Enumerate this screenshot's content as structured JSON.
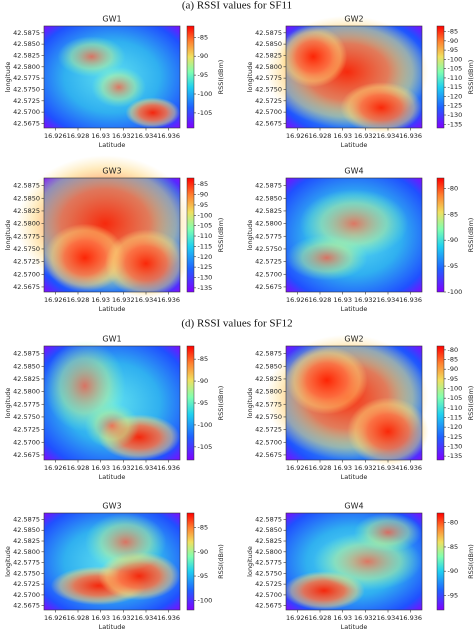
{
  "sections": [
    "(a) RSSI values for SF11",
    "(d) RSSI values for SF12"
  ],
  "chart_data": [
    {
      "type": "heatmap",
      "title": "GW1",
      "xlabel": "Latitude",
      "ylabel": "longitude",
      "xlim": [
        16.925,
        16.937
      ],
      "xticks": [
        16.926,
        16.928,
        16.93,
        16.932,
        16.934,
        16.936
      ],
      "ylim": [
        42.5665,
        42.589
      ],
      "yticks": [
        42.5675,
        {
          "value": 42.57,
          "label": "42.5700"
        },
        42.5725,
        {
          "value": 42.575,
          "label": "42.5750"
        },
        42.5775,
        {
          "value": 42.58,
          "label": "42.5800"
        },
        42.5825,
        {
          "value": 42.585,
          "label": "42.5850"
        },
        42.5875
      ],
      "colorbar": {
        "label": "RSSI(dBm)",
        "lim": [
          -109,
          -82
        ],
        "ticks": [
          -85,
          -90,
          -95,
          -100,
          -105
        ]
      }
    },
    {
      "type": "heatmap",
      "title": "GW2",
      "xlabel": "Latitude",
      "ylabel": "longitude",
      "xlim": [
        16.925,
        16.937
      ],
      "xticks": [
        16.926,
        16.928,
        16.93,
        16.932,
        16.934,
        16.936
      ],
      "ylim": [
        42.5665,
        42.589
      ],
      "yticks": [
        42.5675,
        {
          "value": 42.57,
          "label": "42.5700"
        },
        42.5725,
        {
          "value": 42.575,
          "label": "42.5750"
        },
        42.5775,
        {
          "value": 42.58,
          "label": "42.5800"
        },
        42.5825,
        {
          "value": 42.585,
          "label": "42.5850"
        },
        42.5875
      ],
      "colorbar": {
        "label": "RSSI(dBm)",
        "lim": [
          -137,
          -82
        ],
        "ticks": [
          -85,
          -90,
          -95,
          -100,
          -105,
          -110,
          -115,
          -120,
          -125,
          -130,
          -135
        ]
      }
    },
    {
      "type": "heatmap",
      "title": "GW3",
      "xlabel": "Latitude",
      "ylabel": "longitude",
      "xlim": [
        16.925,
        16.937
      ],
      "xticks": [
        16.926,
        16.928,
        16.93,
        16.932,
        16.934,
        16.936
      ],
      "ylim": [
        42.5665,
        42.589
      ],
      "yticks": [
        42.5675,
        {
          "value": 42.57,
          "label": "42.5700"
        },
        42.5725,
        {
          "value": 42.575,
          "label": "42.5750"
        },
        42.5775,
        {
          "value": 42.58,
          "label": "42.5800"
        },
        42.5825,
        {
          "value": 42.585,
          "label": "42.5850"
        },
        42.5875
      ],
      "colorbar": {
        "label": "RSSI(dBm)",
        "lim": [
          -137,
          -82
        ],
        "ticks": [
          -85,
          -90,
          -95,
          -100,
          -105,
          -110,
          -115,
          -120,
          -125,
          -130,
          -135
        ]
      }
    },
    {
      "type": "heatmap",
      "title": "GW4",
      "xlabel": "Latitude",
      "ylabel": "longitude",
      "xlim": [
        16.925,
        16.937
      ],
      "xticks": [
        16.926,
        16.928,
        16.93,
        16.932,
        16.934,
        16.936
      ],
      "ylim": [
        42.5665,
        42.589
      ],
      "yticks": [
        42.5675,
        {
          "value": 42.57,
          "label": "42.5700"
        },
        42.5725,
        {
          "value": 42.575,
          "label": "42.5750"
        },
        42.5775,
        {
          "value": 42.58,
          "label": "42.5800"
        },
        42.5825,
        {
          "value": 42.585,
          "label": "42.5850"
        },
        42.5875
      ],
      "colorbar": {
        "label": "RSSI(dBm)",
        "lim": [
          -100,
          -78
        ],
        "ticks": [
          -80,
          -85,
          -90,
          -95,
          -100
        ]
      }
    },
    {
      "type": "heatmap",
      "title": "GW1",
      "xlabel": "Latitude",
      "ylabel": "longitude",
      "xlim": [
        16.925,
        16.937
      ],
      "xticks": [
        16.926,
        16.928,
        16.93,
        16.932,
        16.934,
        16.936
      ],
      "ylim": [
        42.5665,
        42.589
      ],
      "yticks": [
        42.5675,
        {
          "value": 42.57,
          "label": "42.5700"
        },
        42.5725,
        {
          "value": 42.575,
          "label": "42.5750"
        },
        42.5775,
        {
          "value": 42.58,
          "label": "42.5800"
        },
        42.5825,
        {
          "value": 42.585,
          "label": "42.5850"
        },
        42.5875
      ],
      "colorbar": {
        "label": "RSSI(dBm)",
        "lim": [
          -108,
          -82
        ],
        "ticks": [
          -85,
          -90,
          -95,
          -100,
          -105
        ]
      }
    },
    {
      "type": "heatmap",
      "title": "GW2",
      "xlabel": "Latitude",
      "ylabel": "longitude",
      "xlim": [
        16.925,
        16.937
      ],
      "xticks": [
        16.926,
        16.928,
        16.93,
        16.932,
        16.934,
        16.936
      ],
      "ylim": [
        42.5665,
        42.589
      ],
      "yticks": [
        42.5675,
        {
          "value": 42.57,
          "label": "42.5700"
        },
        42.5725,
        {
          "value": 42.575,
          "label": "42.5750"
        },
        42.5775,
        {
          "value": 42.58,
          "label": "42.5800"
        },
        42.5825,
        {
          "value": 42.585,
          "label": "42.5850"
        },
        42.5875
      ],
      "colorbar": {
        "label": "RSSI(dBm)",
        "lim": [
          -137,
          -78
        ],
        "ticks": [
          -80,
          -85,
          -90,
          -95,
          -100,
          -105,
          -110,
          -115,
          -120,
          -125,
          -130,
          -135
        ]
      }
    },
    {
      "type": "heatmap",
      "title": "GW3",
      "xlabel": "Latitude",
      "ylabel": "longitude",
      "xlim": [
        16.925,
        16.937
      ],
      "xticks": [
        16.926,
        16.928,
        16.93,
        16.932,
        16.934,
        16.936
      ],
      "ylim": [
        42.5665,
        42.589
      ],
      "yticks": [
        42.5675,
        {
          "value": 42.57,
          "label": "42.5700"
        },
        42.5725,
        {
          "value": 42.575,
          "label": "42.5750"
        },
        42.5775,
        {
          "value": 42.58,
          "label": "42.5800"
        },
        42.5825,
        {
          "value": 42.585,
          "label": "42.5850"
        },
        42.5875
      ],
      "colorbar": {
        "label": "RSSI(dBm)",
        "lim": [
          -102,
          -82
        ],
        "ticks": [
          -85,
          -90,
          -95,
          -100
        ]
      }
    },
    {
      "type": "heatmap",
      "title": "GW4",
      "xlabel": "Latitude",
      "ylabel": "longitude",
      "xlim": [
        16.925,
        16.937
      ],
      "xticks": [
        16.926,
        16.928,
        16.93,
        16.932,
        16.934,
        16.936
      ],
      "ylim": [
        42.5665,
        42.589
      ],
      "yticks": [
        42.5675,
        {
          "value": 42.57,
          "label": "42.5700"
        },
        42.5725,
        {
          "value": 42.575,
          "label": "42.5750"
        },
        42.5775,
        {
          "value": 42.58,
          "label": "42.5800"
        },
        42.5825,
        {
          "value": 42.585,
          "label": "42.5850"
        },
        42.5875
      ],
      "colorbar": {
        "label": "RSSI(dBm)",
        "lim": [
          -98,
          -78
        ],
        "ticks": [
          -80,
          -85,
          -90,
          -95
        ]
      }
    }
  ]
}
